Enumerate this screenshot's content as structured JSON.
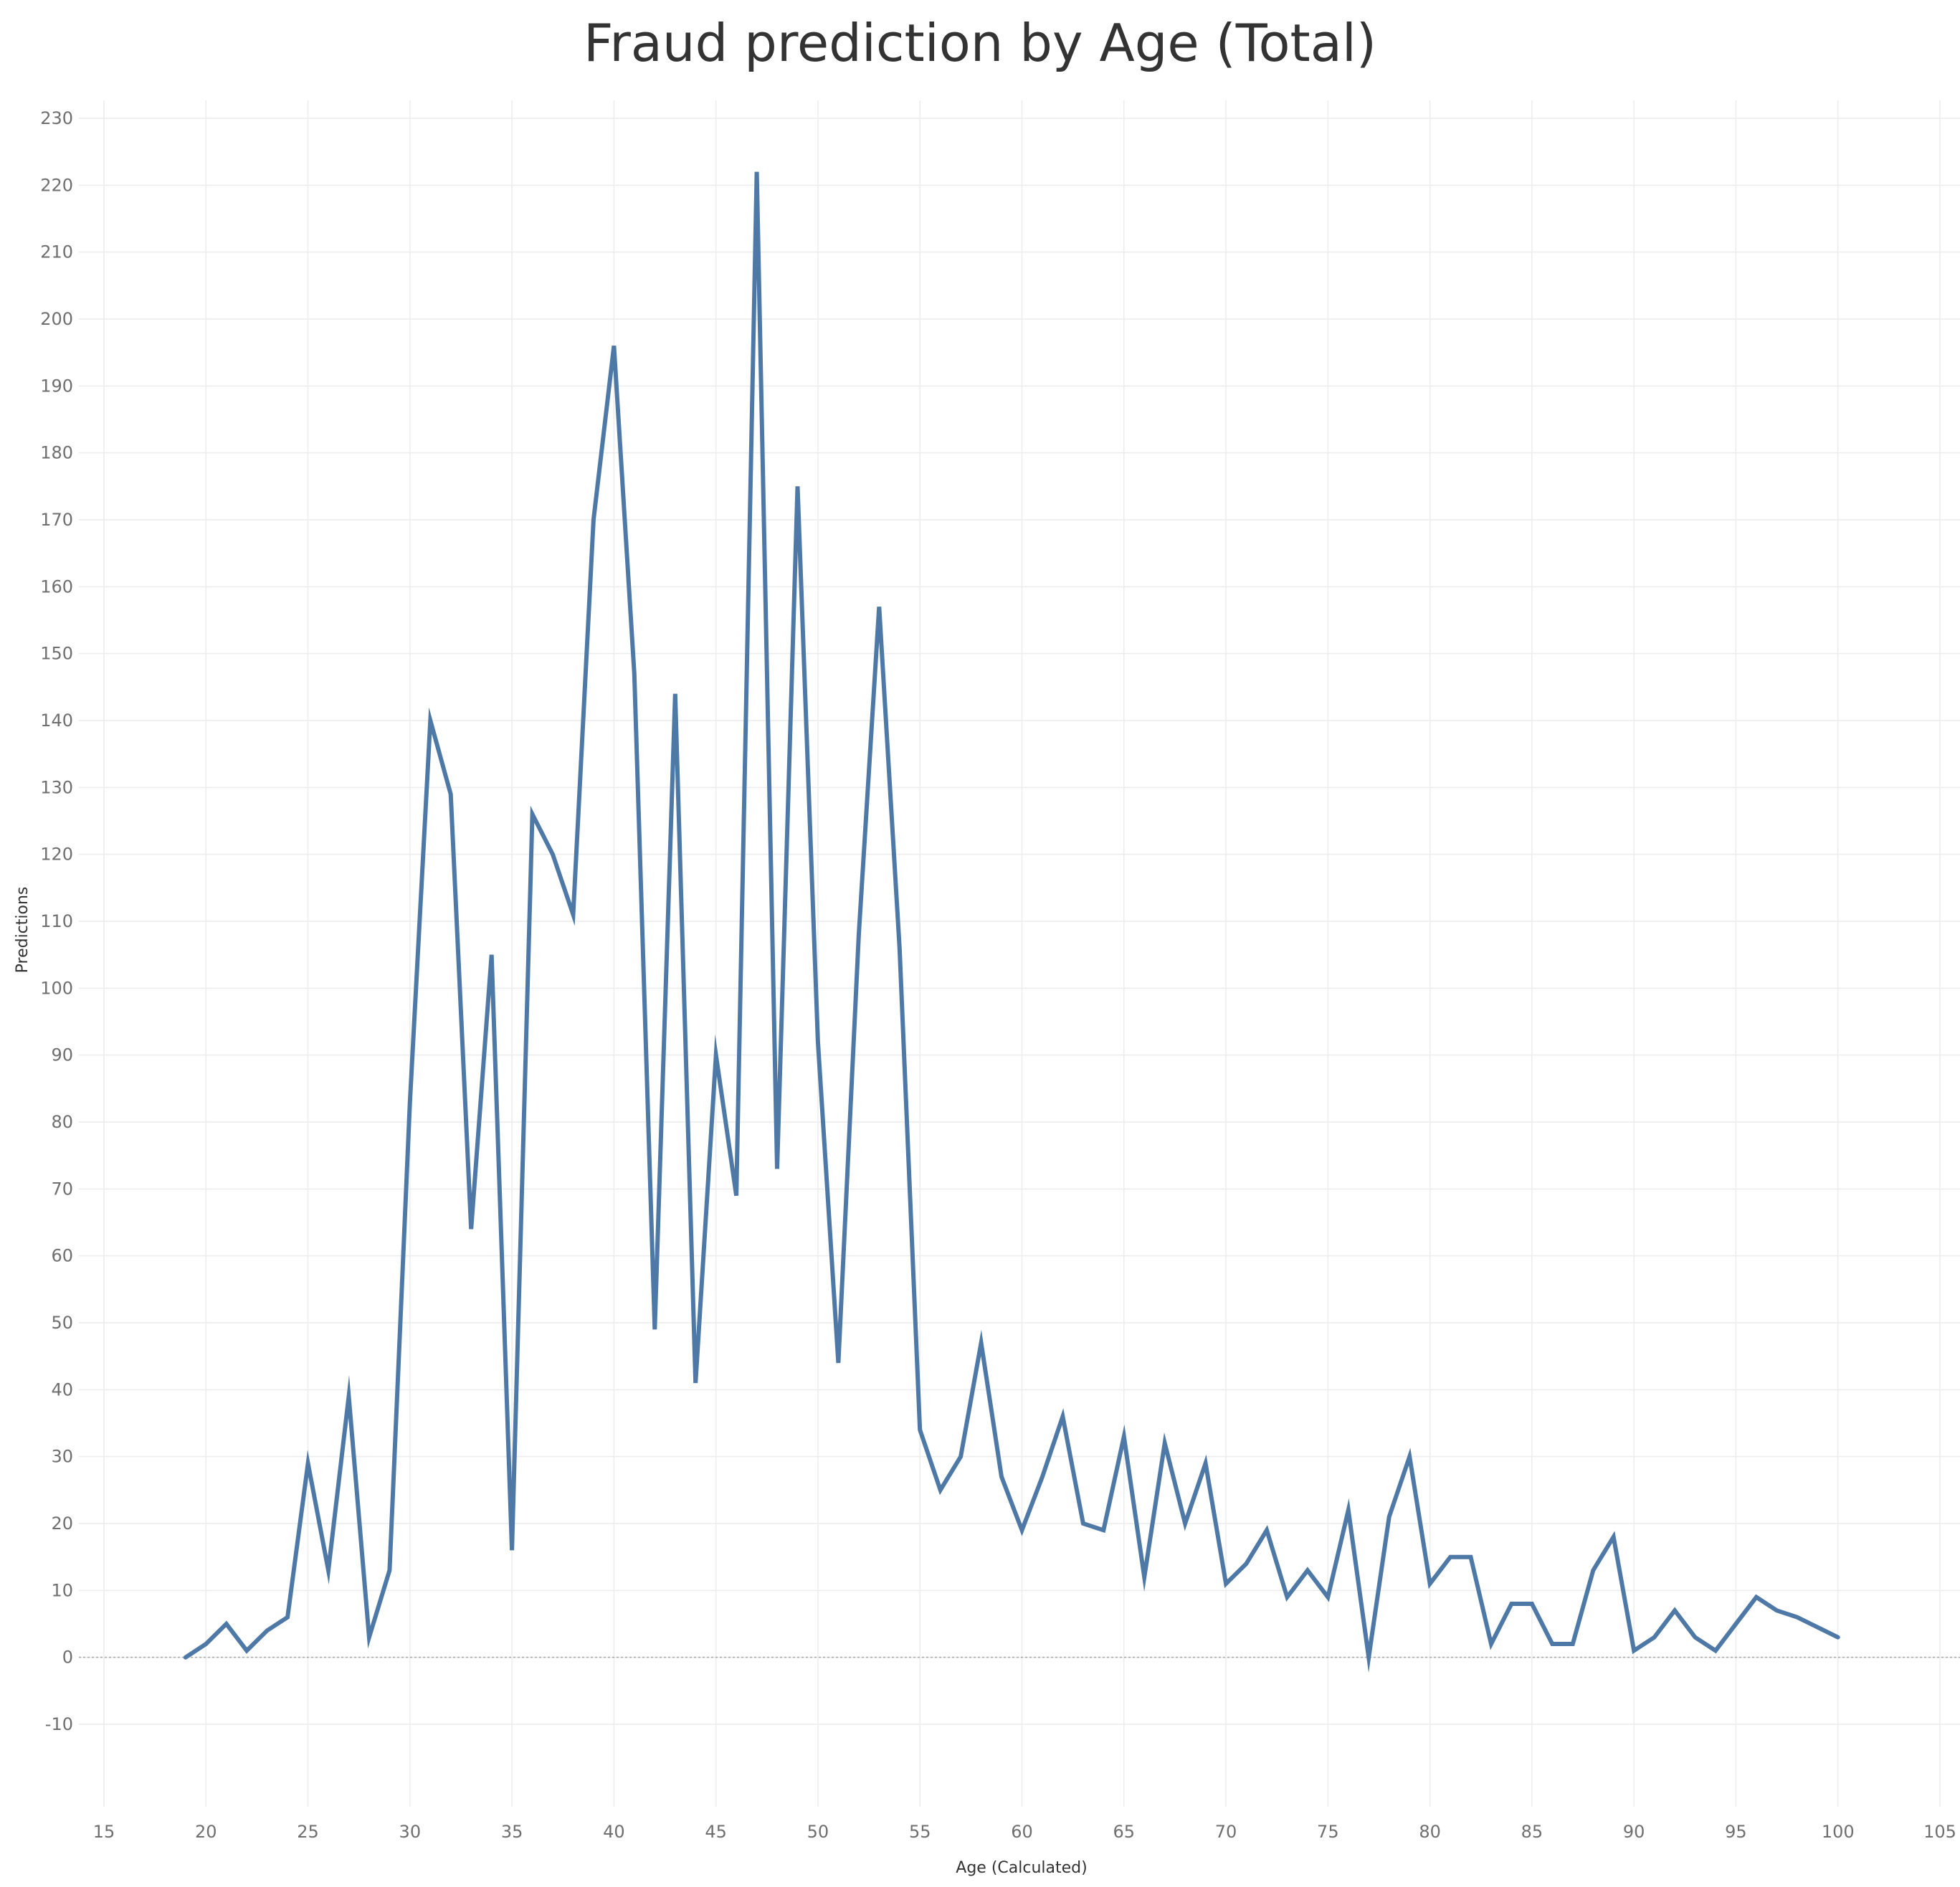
{
  "chart_data": {
    "type": "line",
    "title": "Fraud prediction by Age (Total)",
    "xlabel": "Age (Calculated)",
    "ylabel": "Predictions",
    "xlim": [
      15,
      105
    ],
    "ylim": [
      -10,
      230
    ],
    "x_ticks": [
      15,
      20,
      25,
      30,
      35,
      40,
      45,
      50,
      55,
      60,
      65,
      70,
      75,
      80,
      85,
      90,
      95,
      100,
      105
    ],
    "y_ticks": [
      -10,
      0,
      10,
      20,
      30,
      40,
      50,
      60,
      70,
      80,
      90,
      100,
      110,
      120,
      130,
      140,
      150,
      160,
      170,
      180,
      190,
      200,
      210,
      220,
      230
    ],
    "grid": true,
    "zero_line": "dotted",
    "series_color": "#4e79a7",
    "series": [
      {
        "x": [
          19,
          20,
          21,
          22,
          23,
          24,
          25,
          26,
          27,
          28,
          29,
          30,
          31,
          32,
          33,
          34,
          35,
          36,
          37,
          38,
          39,
          40,
          41,
          42,
          43,
          44,
          45,
          46,
          47,
          48,
          49,
          50,
          51,
          52,
          53,
          54,
          55,
          56,
          57,
          58,
          59,
          60,
          61,
          62,
          63,
          64,
          65,
          66,
          67,
          68,
          69,
          70,
          71,
          72,
          73,
          74,
          75,
          76,
          77,
          78,
          79,
          80,
          81,
          82,
          83,
          84,
          85,
          86,
          87,
          88,
          89,
          90,
          91,
          92,
          93,
          94,
          95,
          96,
          97,
          98,
          99,
          100
        ],
        "y": [
          0,
          2,
          5,
          1,
          4,
          6,
          29,
          13,
          39,
          3,
          13,
          83,
          140,
          129,
          64,
          105,
          16,
          126,
          120,
          111,
          170,
          196,
          147,
          49,
          144,
          41,
          90,
          69,
          222,
          73,
          175,
          92,
          44,
          108,
          157,
          106,
          34,
          25,
          30,
          47,
          27,
          19,
          27,
          36,
          20,
          19,
          33,
          12,
          32,
          20,
          29,
          11,
          14,
          19,
          9,
          13,
          9,
          22,
          0,
          21,
          30,
          11,
          15,
          15,
          2,
          8,
          8,
          2,
          2,
          13,
          18,
          1,
          3,
          7,
          3,
          1,
          5,
          9,
          7,
          6,
          4.5,
          3
        ]
      }
    ]
  }
}
